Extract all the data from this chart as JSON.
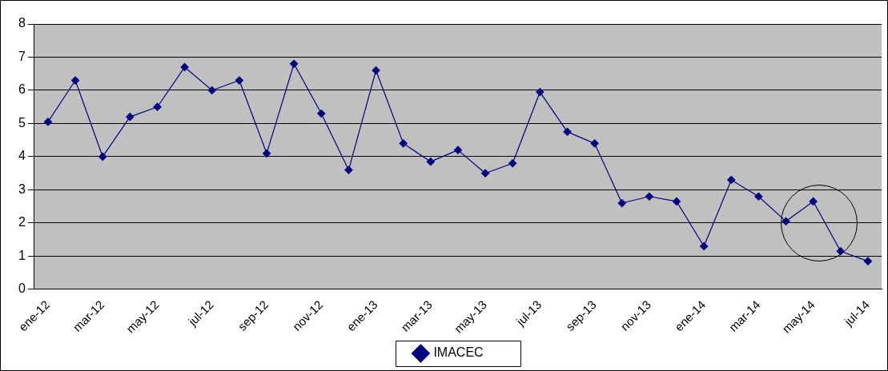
{
  "chart_data": {
    "type": "line",
    "categories": [
      "ene-12",
      null,
      "mar-12",
      null,
      "may-12",
      null,
      "jul-12",
      null,
      "sep-12",
      null,
      "nov-12",
      null,
      "ene-13",
      null,
      "mar-13",
      null,
      "may-13",
      null,
      "jul-13",
      null,
      "sep-13",
      null,
      "nov-13",
      null,
      "ene-14",
      null,
      "mar-14",
      null,
      "may-14",
      null,
      "jul-14"
    ],
    "series": [
      {
        "name": "IMACEC",
        "color": "#000080",
        "values": [
          5.05,
          6.3,
          4.0,
          5.2,
          5.5,
          6.7,
          6.0,
          6.3,
          4.1,
          6.8,
          5.3,
          3.6,
          6.6,
          4.4,
          3.85,
          4.2,
          3.5,
          3.8,
          5.95,
          4.75,
          4.4,
          2.6,
          2.8,
          2.65,
          1.3,
          3.3,
          2.8,
          2.05,
          2.65,
          1.15,
          0.85
        ]
      }
    ],
    "ylim": [
      0,
      8
    ],
    "yticks": [
      0,
      1,
      2,
      3,
      4,
      5,
      6,
      7,
      8
    ],
    "grid": "y",
    "legend": "bottom",
    "marker": "diamond",
    "line_style": "solid"
  }
}
